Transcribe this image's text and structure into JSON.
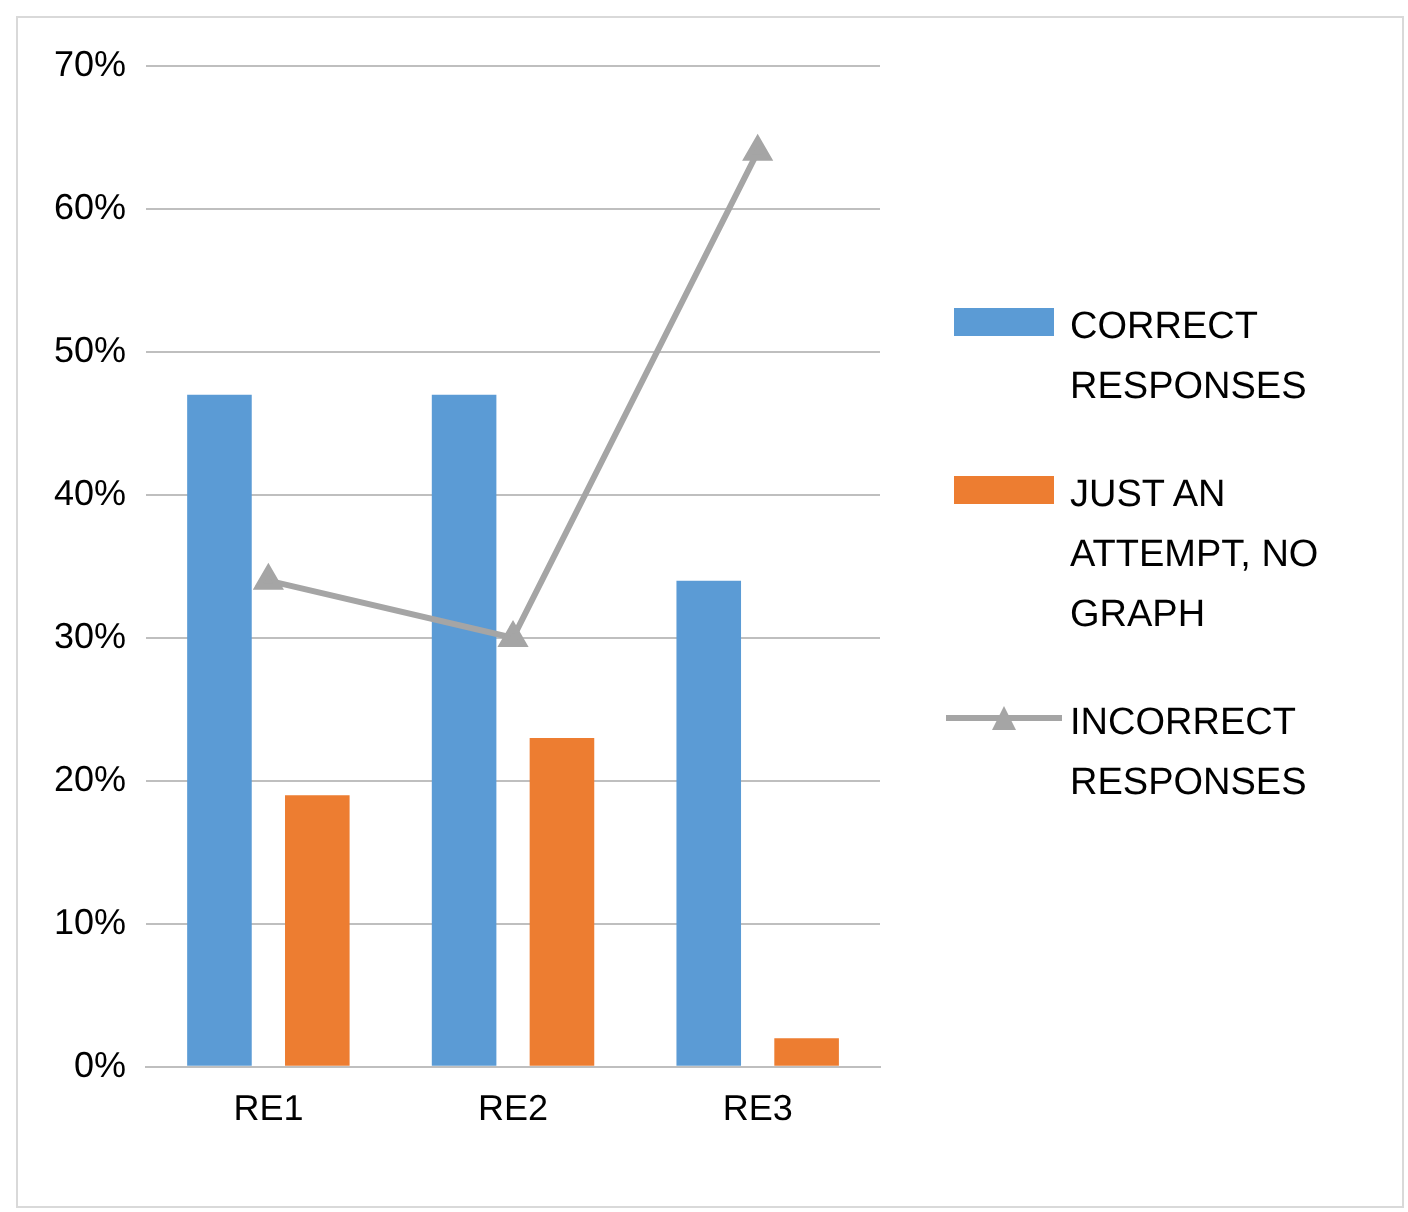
{
  "chart_data": {
    "type": "bar",
    "categories": [
      "RE1",
      "RE2",
      "RE3"
    ],
    "series": [
      {
        "name": "CORRECT RESPONSES",
        "color": "#5b9bd5",
        "values": [
          47,
          47,
          34
        ]
      },
      {
        "name": "JUST AN ATTEMPT, NO GRAPH",
        "color": "#ed7d31",
        "values": [
          19,
          23,
          2
        ]
      },
      {
        "name": "INCORRECT RESPONSES",
        "type": "line",
        "color": "#a5a5a5",
        "values": [
          34,
          30,
          64
        ]
      }
    ],
    "ylim": [
      0,
      70
    ],
    "yticks": [
      {
        "value": 0,
        "label": "0%"
      },
      {
        "value": 10,
        "label": "10%"
      },
      {
        "value": 20,
        "label": "20%"
      },
      {
        "value": 30,
        "label": "30%"
      },
      {
        "value": 40,
        "label": "40%"
      },
      {
        "value": 50,
        "label": "50%"
      },
      {
        "value": 60,
        "label": "60%"
      },
      {
        "value": 70,
        "label": "70%"
      }
    ],
    "grid": "y",
    "legend": "right",
    "marker": "triangle"
  }
}
